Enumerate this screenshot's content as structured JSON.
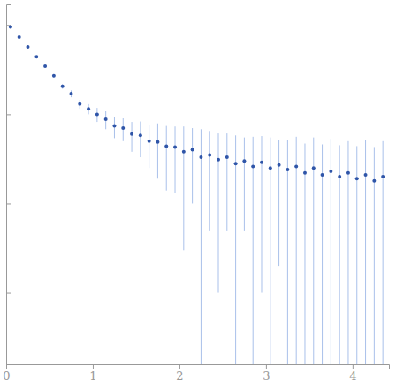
{
  "chart_data": {
    "type": "scatter",
    "x": [
      0.05,
      0.15,
      0.25,
      0.35,
      0.45,
      0.55,
      0.65,
      0.75,
      0.85,
      0.95,
      1.05,
      1.15,
      1.25,
      1.35,
      1.45,
      1.55,
      1.65,
      1.75,
      1.85,
      1.95,
      2.05,
      2.15,
      2.25,
      2.35,
      2.45,
      2.55,
      2.65,
      2.75,
      2.85,
      2.95,
      3.05,
      3.15,
      3.25,
      3.35,
      3.45,
      3.55,
      3.65,
      3.75,
      3.85,
      3.95,
      4.05,
      4.15,
      4.25,
      4.35
    ],
    "values": [
      0.95,
      0.73,
      0.57,
      0.44,
      0.345,
      0.27,
      0.205,
      0.17,
      0.13,
      0.115,
      0.1,
      0.088,
      0.074,
      0.07,
      0.06,
      0.058,
      0.05,
      0.049,
      0.044,
      0.043,
      0.038,
      0.04,
      0.033,
      0.035,
      0.031,
      0.033,
      0.028,
      0.03,
      0.026,
      0.029,
      0.025,
      0.027,
      0.024,
      0.026,
      0.022,
      0.025,
      0.021,
      0.023,
      0.02,
      0.022,
      0.019,
      0.021,
      0.018,
      0.02
    ],
    "errors": [
      0.01,
      0.01,
      0.01,
      0.01,
      0.01,
      0.012,
      0.012,
      0.015,
      0.015,
      0.015,
      0.018,
      0.02,
      0.02,
      0.02,
      0.022,
      0.025,
      0.025,
      0.03,
      0.03,
      0.03,
      0.035,
      0.03,
      0.035,
      0.03,
      0.03,
      0.028,
      0.03,
      0.025,
      0.03,
      0.028,
      0.03,
      0.025,
      0.028,
      0.03,
      0.025,
      0.03,
      0.025,
      0.03,
      0.025,
      0.028,
      0.025,
      0.03,
      0.025,
      0.03
    ],
    "xlim": [
      0,
      4.42
    ],
    "xticks": [
      0,
      1,
      2,
      3,
      4
    ],
    "ylim": [
      0.00016,
      1.7
    ],
    "yticks": [
      0.001,
      0.01,
      0.1,
      1
    ],
    "log": "y",
    "tick_labels": "x",
    "color": "#2f55a8",
    "marker": "circle"
  }
}
